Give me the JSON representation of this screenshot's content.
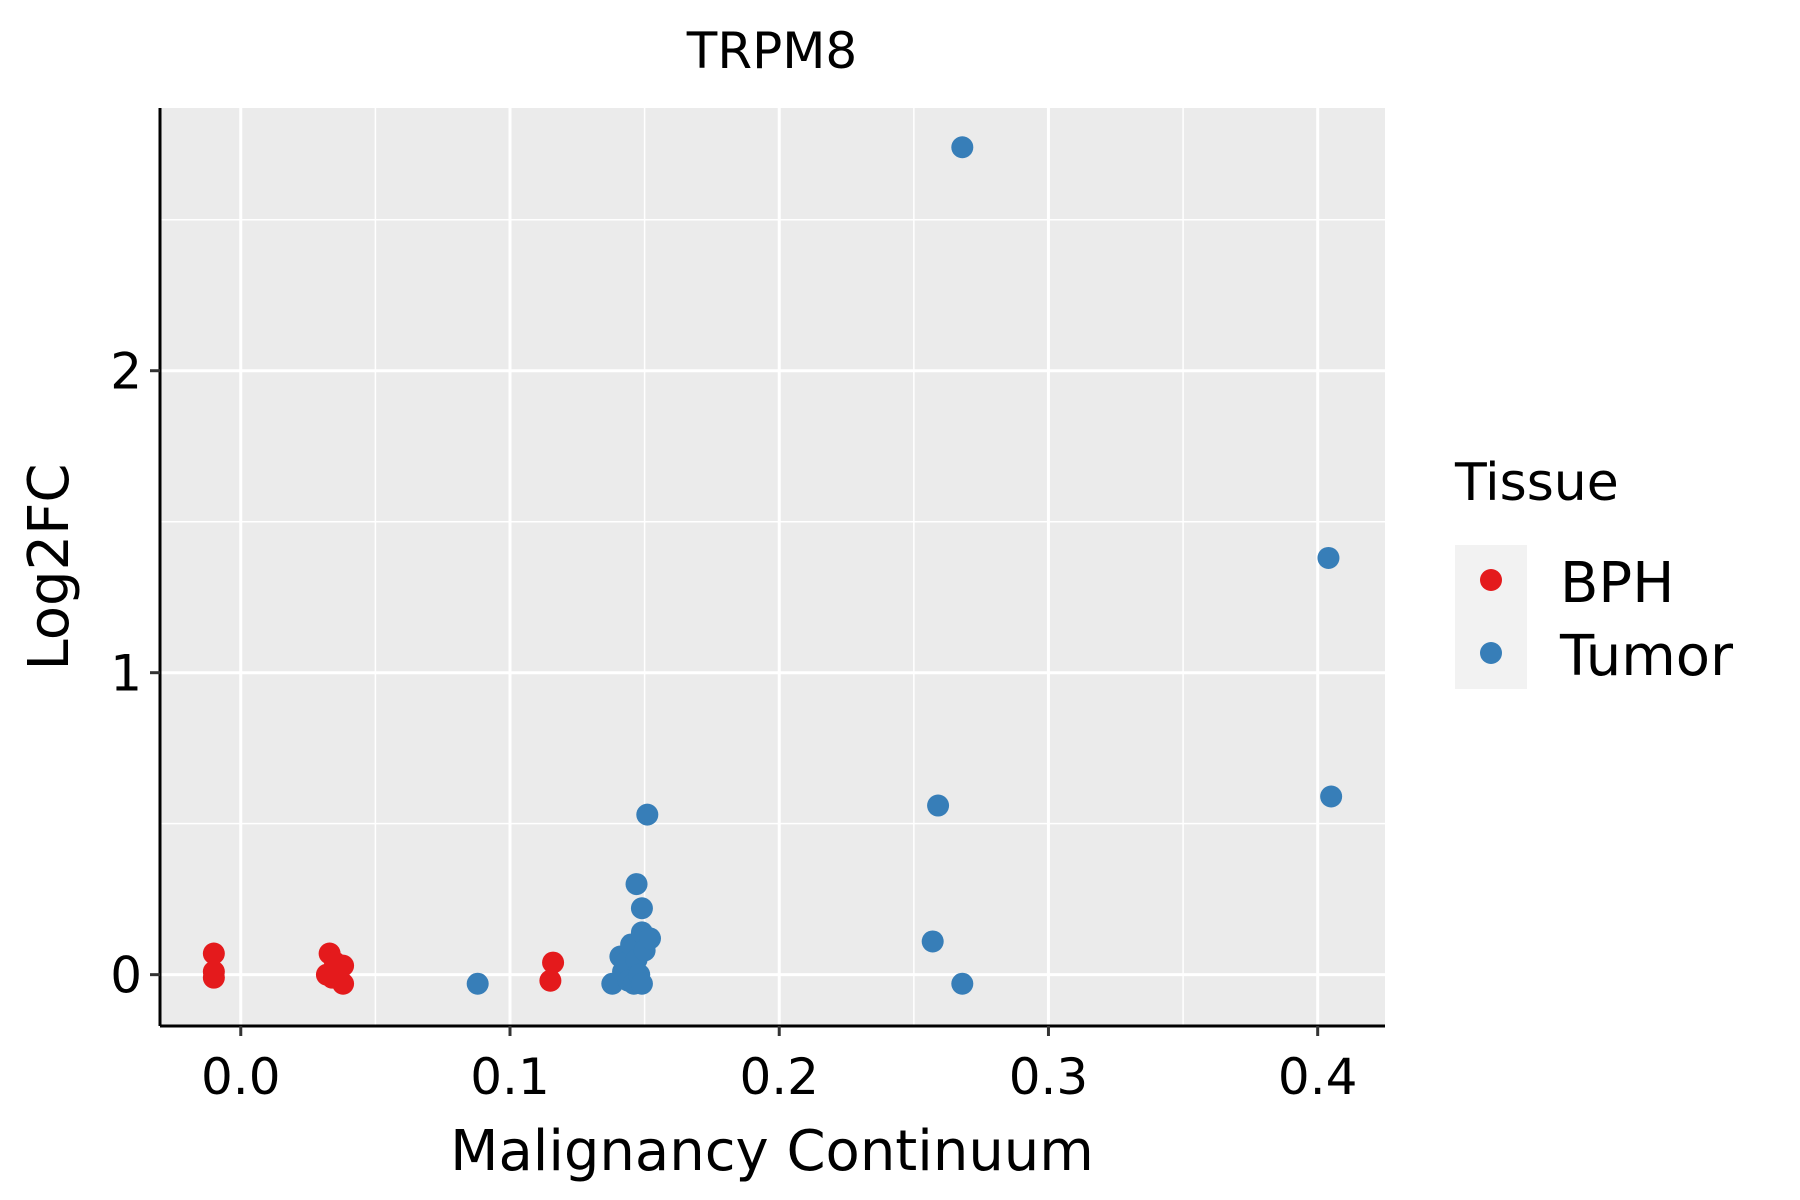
{
  "chart_data": {
    "type": "scatter",
    "title": "TRPM8",
    "xlabel": "Malignancy Continuum",
    "ylabel": "Log2FC",
    "xlim": [
      -0.03,
      0.425
    ],
    "ylim": [
      -0.17,
      2.87
    ],
    "x_ticks": [
      0.0,
      0.1,
      0.2,
      0.3,
      0.4
    ],
    "x_tick_labels": [
      "0.0",
      "0.1",
      "0.2",
      "0.3",
      "0.4"
    ],
    "y_ticks": [
      0,
      1,
      2
    ],
    "y_tick_labels": [
      "0",
      "1",
      "2"
    ],
    "grid": true,
    "background": "#ebebeb",
    "legend": {
      "title": "Tissue",
      "position": "right",
      "entries": [
        {
          "label": "BPH",
          "color": "#e41a1c"
        },
        {
          "label": "Tumor",
          "color": "#377eb8"
        }
      ]
    },
    "series": [
      {
        "name": "BPH",
        "color": "#e41a1c",
        "points": [
          {
            "x": -0.01,
            "y": 0.07
          },
          {
            "x": -0.01,
            "y": 0.01
          },
          {
            "x": -0.01,
            "y": -0.01
          },
          {
            "x": 0.032,
            "y": 0.0
          },
          {
            "x": 0.033,
            "y": 0.07
          },
          {
            "x": 0.034,
            "y": -0.01
          },
          {
            "x": 0.035,
            "y": 0.04
          },
          {
            "x": 0.036,
            "y": 0.02
          },
          {
            "x": 0.038,
            "y": 0.03
          },
          {
            "x": 0.038,
            "y": -0.03
          },
          {
            "x": 0.115,
            "y": -0.02
          },
          {
            "x": 0.116,
            "y": 0.04
          }
        ]
      },
      {
        "name": "Tumor",
        "color": "#377eb8",
        "points": [
          {
            "x": 0.088,
            "y": -0.03
          },
          {
            "x": 0.138,
            "y": -0.03
          },
          {
            "x": 0.141,
            "y": 0.06
          },
          {
            "x": 0.142,
            "y": 0.01
          },
          {
            "x": 0.143,
            "y": 0.04
          },
          {
            "x": 0.144,
            "y": -0.02
          },
          {
            "x": 0.145,
            "y": 0.1
          },
          {
            "x": 0.146,
            "y": -0.03
          },
          {
            "x": 0.147,
            "y": 0.3
          },
          {
            "x": 0.147,
            "y": 0.05
          },
          {
            "x": 0.148,
            "y": 0.0
          },
          {
            "x": 0.149,
            "y": 0.14
          },
          {
            "x": 0.149,
            "y": 0.22
          },
          {
            "x": 0.149,
            "y": -0.03
          },
          {
            "x": 0.15,
            "y": 0.08
          },
          {
            "x": 0.151,
            "y": 0.53
          },
          {
            "x": 0.152,
            "y": 0.12
          },
          {
            "x": 0.257,
            "y": 0.11
          },
          {
            "x": 0.259,
            "y": 0.56
          },
          {
            "x": 0.268,
            "y": 2.74
          },
          {
            "x": 0.268,
            "y": -0.03
          },
          {
            "x": 0.404,
            "y": 1.38
          },
          {
            "x": 0.405,
            "y": 0.59
          }
        ]
      }
    ]
  }
}
